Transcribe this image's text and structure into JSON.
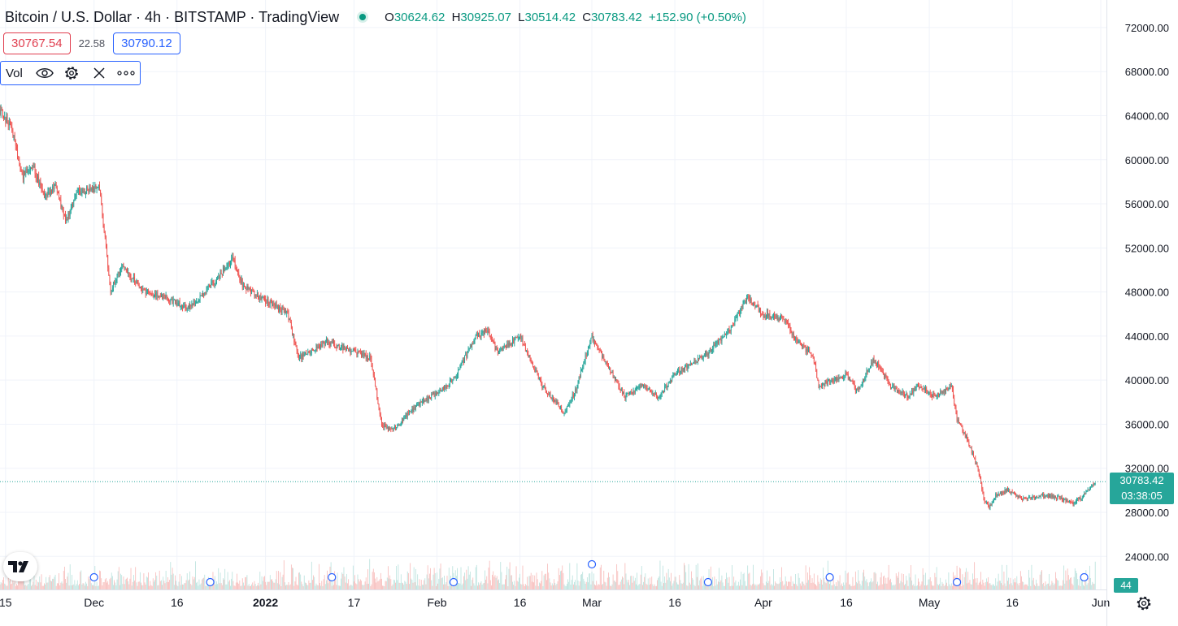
{
  "header": {
    "title": "Bitcoin / U.S. Dollar · 4h · BITSTAMP · TradingView",
    "ohlc": {
      "o_key": "O",
      "o_val": "30624.62",
      "h_key": "H",
      "h_val": "30925.07",
      "l_key": "L",
      "l_val": "30514.42",
      "c_key": "C",
      "c_val": "30783.42",
      "change": "+152.90 (+0.50%)"
    }
  },
  "quotes": {
    "bid": "30767.54",
    "spread": "22.58",
    "ask": "30790.12"
  },
  "indicator": {
    "label": "Vol",
    "icons": [
      "eye-icon",
      "gear-icon",
      "close-icon",
      "more-icon"
    ]
  },
  "price_tag": {
    "price": "30783.42",
    "countdown": "03:38:05"
  },
  "volume_tag": "44",
  "colors": {
    "up": "#26a69a",
    "down": "#ef5350",
    "up_volume": "#b7e1dc",
    "down_volume": "#f7b9b7",
    "grid": "#f0f3fa",
    "text": "#131722",
    "accent": "#2962ff"
  },
  "chart_data": {
    "type": "candlestick",
    "title": "Bitcoin / U.S. Dollar · 4h · BITSTAMP",
    "interval": "4h",
    "grid": true,
    "y_axis": {
      "position": "right",
      "ticks": [
        "72000.00",
        "68000.00",
        "64000.00",
        "60000.00",
        "56000.00",
        "52000.00",
        "48000.00",
        "44000.00",
        "40000.00",
        "36000.00",
        "32000.00",
        "28000.00",
        "24000.00"
      ],
      "range": [
        21000,
        74500
      ]
    },
    "x_axis": {
      "ticks": [
        "15",
        "Dec",
        "16",
        "2022",
        "17",
        "Feb",
        "16",
        "Mar",
        "16",
        "Apr",
        "16",
        "May",
        "16",
        "Jun"
      ],
      "range": [
        "2021-11-14",
        "2022-06-01"
      ]
    },
    "price_path": [
      {
        "date": "2021-11-14",
        "price": 64500
      },
      {
        "date": "2021-11-16",
        "price": 63000
      },
      {
        "date": "2021-11-18",
        "price": 58500
      },
      {
        "date": "2021-11-20",
        "price": 59500
      },
      {
        "date": "2021-11-22",
        "price": 56500
      },
      {
        "date": "2021-11-24",
        "price": 57500
      },
      {
        "date": "2021-11-26",
        "price": 54500
      },
      {
        "date": "2021-11-28",
        "price": 57000
      },
      {
        "date": "2021-12-02",
        "price": 57500
      },
      {
        "date": "2021-12-04",
        "price": 48000
      },
      {
        "date": "2021-12-06",
        "price": 50500
      },
      {
        "date": "2021-12-10",
        "price": 48000
      },
      {
        "date": "2021-12-14",
        "price": 47500
      },
      {
        "date": "2021-12-18",
        "price": 46500
      },
      {
        "date": "2021-12-22",
        "price": 48500
      },
      {
        "date": "2021-12-26",
        "price": 51000
      },
      {
        "date": "2021-12-28",
        "price": 48500
      },
      {
        "date": "2022-01-01",
        "price": 47200
      },
      {
        "date": "2022-01-05",
        "price": 46000
      },
      {
        "date": "2022-01-07",
        "price": 42000
      },
      {
        "date": "2022-01-12",
        "price": 43500
      },
      {
        "date": "2022-01-20",
        "price": 42000
      },
      {
        "date": "2022-01-22",
        "price": 36000
      },
      {
        "date": "2022-01-24",
        "price": 35500
      },
      {
        "date": "2022-01-28",
        "price": 37500
      },
      {
        "date": "2022-02-04",
        "price": 40000
      },
      {
        "date": "2022-02-08",
        "price": 44000
      },
      {
        "date": "2022-02-10",
        "price": 44500
      },
      {
        "date": "2022-02-12",
        "price": 42500
      },
      {
        "date": "2022-02-16",
        "price": 44000
      },
      {
        "date": "2022-02-20",
        "price": 39500
      },
      {
        "date": "2022-02-24",
        "price": 37000
      },
      {
        "date": "2022-02-26",
        "price": 39000
      },
      {
        "date": "2022-03-01",
        "price": 44000
      },
      {
        "date": "2022-03-03",
        "price": 42000
      },
      {
        "date": "2022-03-07",
        "price": 38500
      },
      {
        "date": "2022-03-10",
        "price": 39500
      },
      {
        "date": "2022-03-13",
        "price": 38500
      },
      {
        "date": "2022-03-16",
        "price": 40500
      },
      {
        "date": "2022-03-22",
        "price": 42500
      },
      {
        "date": "2022-03-26",
        "price": 44500
      },
      {
        "date": "2022-03-29",
        "price": 47500
      },
      {
        "date": "2022-04-01",
        "price": 46000
      },
      {
        "date": "2022-04-05",
        "price": 45500
      },
      {
        "date": "2022-04-07",
        "price": 43500
      },
      {
        "date": "2022-04-10",
        "price": 42200
      },
      {
        "date": "2022-04-11",
        "price": 39500
      },
      {
        "date": "2022-04-16",
        "price": 40500
      },
      {
        "date": "2022-04-18",
        "price": 39000
      },
      {
        "date": "2022-04-21",
        "price": 42000
      },
      {
        "date": "2022-04-24",
        "price": 39500
      },
      {
        "date": "2022-04-27",
        "price": 38500
      },
      {
        "date": "2022-04-29",
        "price": 39500
      },
      {
        "date": "2022-05-02",
        "price": 38500
      },
      {
        "date": "2022-05-05",
        "price": 39500
      },
      {
        "date": "2022-05-06",
        "price": 36500
      },
      {
        "date": "2022-05-08",
        "price": 34500
      },
      {
        "date": "2022-05-10",
        "price": 31500
      },
      {
        "date": "2022-05-11",
        "price": 29000
      },
      {
        "date": "2022-05-12",
        "price": 28500
      },
      {
        "date": "2022-05-13",
        "price": 29500
      },
      {
        "date": "2022-05-15",
        "price": 30000
      },
      {
        "date": "2022-05-18",
        "price": 29200
      },
      {
        "date": "2022-05-21",
        "price": 29500
      },
      {
        "date": "2022-05-24",
        "price": 29400
      },
      {
        "date": "2022-05-27",
        "price": 28800
      },
      {
        "date": "2022-05-29",
        "price": 29600
      },
      {
        "date": "2022-05-31",
        "price": 30783
      }
    ],
    "last_price": 30783.42
  }
}
